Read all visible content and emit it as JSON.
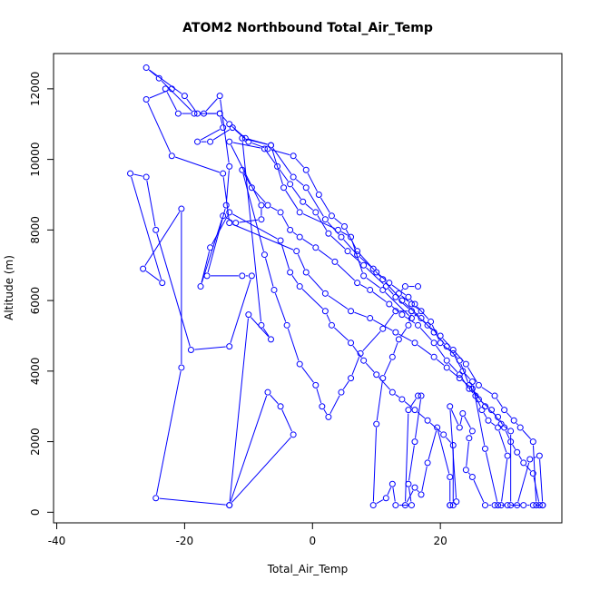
{
  "chart_data": {
    "type": "line",
    "title": "ATOM2 Northbound Total_Air_Temp",
    "xlabel": "Total_Air_Temp",
    "ylabel": "Altitude (m)",
    "xlim": [
      -40.5,
      39
    ],
    "ylim": [
      -300,
      13000
    ],
    "x_ticks": [
      -40,
      -20,
      0,
      20
    ],
    "y_ticks": [
      0,
      2000,
      4000,
      6000,
      8000,
      10000,
      12000
    ],
    "grid": false,
    "marker": "open-circle",
    "colors": {
      "series": "#0000ff",
      "axis": "#000000"
    },
    "series": [
      {
        "points": [
          [
            16.5,
            6400
          ],
          [
            14.5,
            6400
          ],
          [
            13.5,
            6200
          ],
          [
            15.5,
            5900
          ],
          [
            17,
            5700
          ],
          [
            15.5,
            5500
          ],
          [
            11,
            6300
          ],
          [
            8,
            6700
          ],
          [
            6,
            7800
          ],
          [
            4,
            8000
          ],
          [
            -2,
            8500
          ],
          [
            -4.5,
            9200
          ],
          [
            -6.5,
            10400
          ],
          [
            -10.5,
            10600
          ],
          [
            -13,
            11000
          ],
          [
            -14.5,
            11300
          ],
          [
            -18,
            11300
          ],
          [
            -20,
            11800
          ],
          [
            -26,
            12600
          ],
          [
            -24,
            12300
          ],
          [
            -18.5,
            11300
          ],
          [
            -21,
            11300
          ],
          [
            -23,
            12000
          ],
          [
            -22,
            12000
          ],
          [
            -26,
            11700
          ],
          [
            -22,
            10100
          ],
          [
            -14,
            9600
          ],
          [
            -13,
            8200
          ],
          [
            -2.5,
            7400
          ],
          [
            -1,
            6800
          ],
          [
            2,
            6200
          ],
          [
            6,
            5700
          ],
          [
            9,
            5500
          ],
          [
            13,
            5100
          ],
          [
            16,
            4800
          ],
          [
            19,
            4400
          ],
          [
            21,
            4100
          ],
          [
            23,
            3800
          ],
          [
            25,
            3500
          ],
          [
            27,
            3000
          ],
          [
            29,
            2700
          ],
          [
            30,
            2400
          ],
          [
            31,
            2000
          ],
          [
            32,
            1700
          ],
          [
            33,
            1400
          ],
          [
            34.5,
            1100
          ],
          [
            35.5,
            200
          ],
          [
            36,
            200
          ],
          [
            35.5,
            1600
          ],
          [
            34,
            1500
          ],
          [
            32,
            200
          ],
          [
            30.5,
            200
          ],
          [
            29,
            200
          ],
          [
            27,
            1800
          ],
          [
            25,
            3700
          ],
          [
            23.5,
            4000
          ],
          [
            22,
            4500
          ],
          [
            20,
            4800
          ],
          [
            18.5,
            5400
          ],
          [
            16,
            5900
          ],
          [
            15,
            6100
          ],
          [
            12,
            6500
          ],
          [
            10,
            6800
          ],
          [
            7,
            7400
          ],
          [
            5,
            8100
          ],
          [
            3,
            8400
          ],
          [
            1,
            9000
          ],
          [
            -1,
            9700
          ],
          [
            -3,
            10100
          ],
          [
            -7,
            10300
          ],
          [
            -10,
            10500
          ],
          [
            -12.5,
            10900
          ],
          [
            -16,
            10500
          ],
          [
            -18,
            10500
          ],
          [
            -14,
            10900
          ],
          [
            -14.5,
            11300
          ],
          [
            -17,
            11300
          ],
          [
            -14.5,
            11800
          ],
          [
            -13,
            9800
          ],
          [
            -13.5,
            8700
          ],
          [
            -16.5,
            6700
          ],
          [
            -11,
            6700
          ],
          [
            -9.5,
            6700
          ],
          [
            -13,
            4700
          ],
          [
            -19,
            4600
          ],
          [
            -24.5,
            8000
          ],
          [
            -26,
            9500
          ],
          [
            -28.5,
            9600
          ],
          [
            -23.5,
            6500
          ],
          [
            -26.5,
            6900
          ],
          [
            -20.5,
            8600
          ],
          [
            -20.5,
            4100
          ],
          [
            -24.5,
            400
          ],
          [
            -13,
            200
          ],
          [
            -3,
            2200
          ],
          [
            -5,
            3000
          ],
          [
            -7,
            3400
          ],
          [
            -13,
            200
          ],
          [
            -10,
            5600
          ],
          [
            -6.5,
            4900
          ],
          [
            -8,
            5300
          ],
          [
            -11,
            10600
          ],
          [
            -6.5,
            10400
          ],
          [
            -3,
            9500
          ],
          [
            -1,
            9200
          ],
          [
            2,
            8300
          ],
          [
            4.5,
            7800
          ],
          [
            7,
            7300
          ],
          [
            9.5,
            6900
          ],
          [
            11,
            6600
          ],
          [
            14,
            6000
          ],
          [
            17,
            5500
          ],
          [
            19,
            5100
          ],
          [
            21,
            4700
          ],
          [
            23,
            4300
          ],
          [
            24.5,
            3600
          ],
          [
            26,
            3200
          ],
          [
            28,
            2900
          ],
          [
            29.5,
            2500
          ],
          [
            31,
            2300
          ],
          [
            31,
            200
          ],
          [
            33,
            200
          ],
          [
            34.5,
            200
          ],
          [
            36,
            200
          ],
          [
            35,
            200
          ],
          [
            34.5,
            2000
          ],
          [
            32.5,
            2400
          ],
          [
            31.5,
            2600
          ],
          [
            30,
            2900
          ],
          [
            28.5,
            3300
          ],
          [
            26,
            3600
          ],
          [
            24,
            4200
          ],
          [
            22,
            4600
          ],
          [
            20,
            5000
          ],
          [
            18,
            5300
          ],
          [
            15.5,
            5700
          ],
          [
            13,
            6100
          ],
          [
            11.5,
            6400
          ],
          [
            8,
            7000
          ],
          [
            5.5,
            7400
          ],
          [
            2.5,
            7900
          ],
          [
            0.5,
            8500
          ],
          [
            -1.5,
            8800
          ],
          [
            -3.5,
            9300
          ],
          [
            -5.5,
            9800
          ],
          [
            -7.5,
            10300
          ],
          [
            -13,
            10500
          ],
          [
            -8,
            8700
          ],
          [
            -8,
            8300
          ],
          [
            -12,
            8200
          ],
          [
            -14,
            8400
          ],
          [
            -17.5,
            6400
          ],
          [
            -16,
            7500
          ],
          [
            -13,
            8500
          ],
          [
            -5,
            7700
          ],
          [
            -3.5,
            6800
          ],
          [
            -2,
            6400
          ],
          [
            2,
            5700
          ],
          [
            3,
            5300
          ],
          [
            6,
            4800
          ],
          [
            8,
            4300
          ],
          [
            10,
            3900
          ],
          [
            12.5,
            3400
          ],
          [
            14,
            3200
          ],
          [
            16,
            2900
          ],
          [
            18,
            2600
          ],
          [
            20.5,
            2200
          ],
          [
            22,
            1900
          ],
          [
            22,
            200
          ],
          [
            21.5,
            200
          ],
          [
            22.5,
            300
          ],
          [
            21.5,
            3000
          ],
          [
            23,
            2400
          ],
          [
            23.5,
            2800
          ],
          [
            25,
            2300
          ],
          [
            24.5,
            2100
          ],
          [
            24,
            1200
          ],
          [
            25,
            1000
          ],
          [
            27,
            200
          ],
          [
            28.5,
            200
          ],
          [
            29.5,
            200
          ],
          [
            30.5,
            1600
          ],
          [
            29,
            2400
          ],
          [
            27.5,
            2600
          ],
          [
            26.5,
            2900
          ],
          [
            25.5,
            3300
          ],
          [
            24.5,
            3500
          ],
          [
            23,
            3900
          ],
          [
            21,
            4300
          ],
          [
            19,
            4800
          ],
          [
            16.5,
            5300
          ],
          [
            14,
            5600
          ],
          [
            12,
            5900
          ],
          [
            9,
            6300
          ],
          [
            7,
            6500
          ],
          [
            3.5,
            7100
          ],
          [
            0.5,
            7500
          ],
          [
            -2,
            7800
          ],
          [
            -3.5,
            8000
          ],
          [
            -5,
            8500
          ],
          [
            -7,
            8700
          ],
          [
            -9.5,
            9200
          ],
          [
            -11,
            9700
          ],
          [
            -7.5,
            7300
          ],
          [
            -6,
            6300
          ],
          [
            -4,
            5300
          ],
          [
            -2,
            4200
          ],
          [
            0.5,
            3600
          ],
          [
            1.5,
            3000
          ],
          [
            2.5,
            2700
          ],
          [
            4.5,
            3400
          ],
          [
            6,
            3800
          ],
          [
            7.5,
            4500
          ],
          [
            11,
            5200
          ],
          [
            13,
            5700
          ],
          [
            15.5,
            5700
          ],
          [
            15,
            5300
          ],
          [
            13.5,
            4900
          ],
          [
            12.5,
            4400
          ],
          [
            11,
            3800
          ],
          [
            10,
            2500
          ],
          [
            9.5,
            200
          ],
          [
            11.5,
            400
          ],
          [
            12.5,
            800
          ],
          [
            13,
            200
          ],
          [
            15.5,
            200
          ],
          [
            15,
            800
          ],
          [
            16,
            2000
          ],
          [
            17,
            3300
          ],
          [
            16.5,
            3300
          ],
          [
            15,
            2900
          ],
          [
            14.5,
            200
          ],
          [
            16,
            700
          ],
          [
            17,
            500
          ],
          [
            18,
            1400
          ],
          [
            19.5,
            2400
          ],
          [
            21.5,
            1000
          ],
          [
            21.5,
            200
          ]
        ]
      }
    ]
  }
}
